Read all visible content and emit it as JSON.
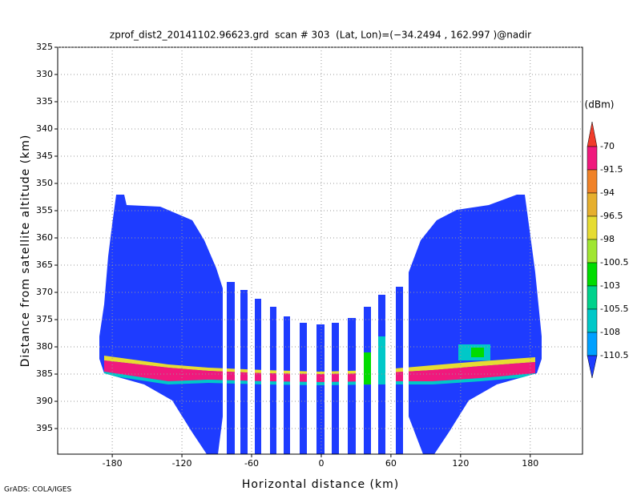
{
  "chart_data": {
    "type": "profile",
    "title": "zprof_dist2_20141102.96623.grd  scan # 303  (Lat, Lon)=(−34.2494 , 162.997 )@nadir",
    "x_label": "Horizontal distance (km)",
    "y_label": "Distance from satellite altitude (km)",
    "xlim": [
      -227,
      225
    ],
    "ylim": [
      325,
      399.7
    ],
    "xticks": [
      -180,
      -120,
      -60,
      0,
      60,
      120,
      180
    ],
    "yticks": [
      325,
      330,
      335,
      340,
      345,
      350,
      355,
      360,
      365,
      370,
      375,
      380,
      385,
      390,
      395
    ],
    "grid": true,
    "colorbar": {
      "unit": "(dBm)",
      "levels": [
        -70,
        -91.5,
        -94,
        -96.5,
        -98,
        -100.5,
        -103,
        -105.5,
        -108,
        -110.5
      ],
      "colors": [
        "#f03c2b",
        "#f0197d",
        "#f08228",
        "#e6af2d",
        "#e6dc32",
        "#a0e632",
        "#00dc00",
        "#00d28c",
        "#00c8c8",
        "#00a0ff",
        "#1e3cff"
      ]
    },
    "footer": "GrADS: COLA/IGES"
  }
}
